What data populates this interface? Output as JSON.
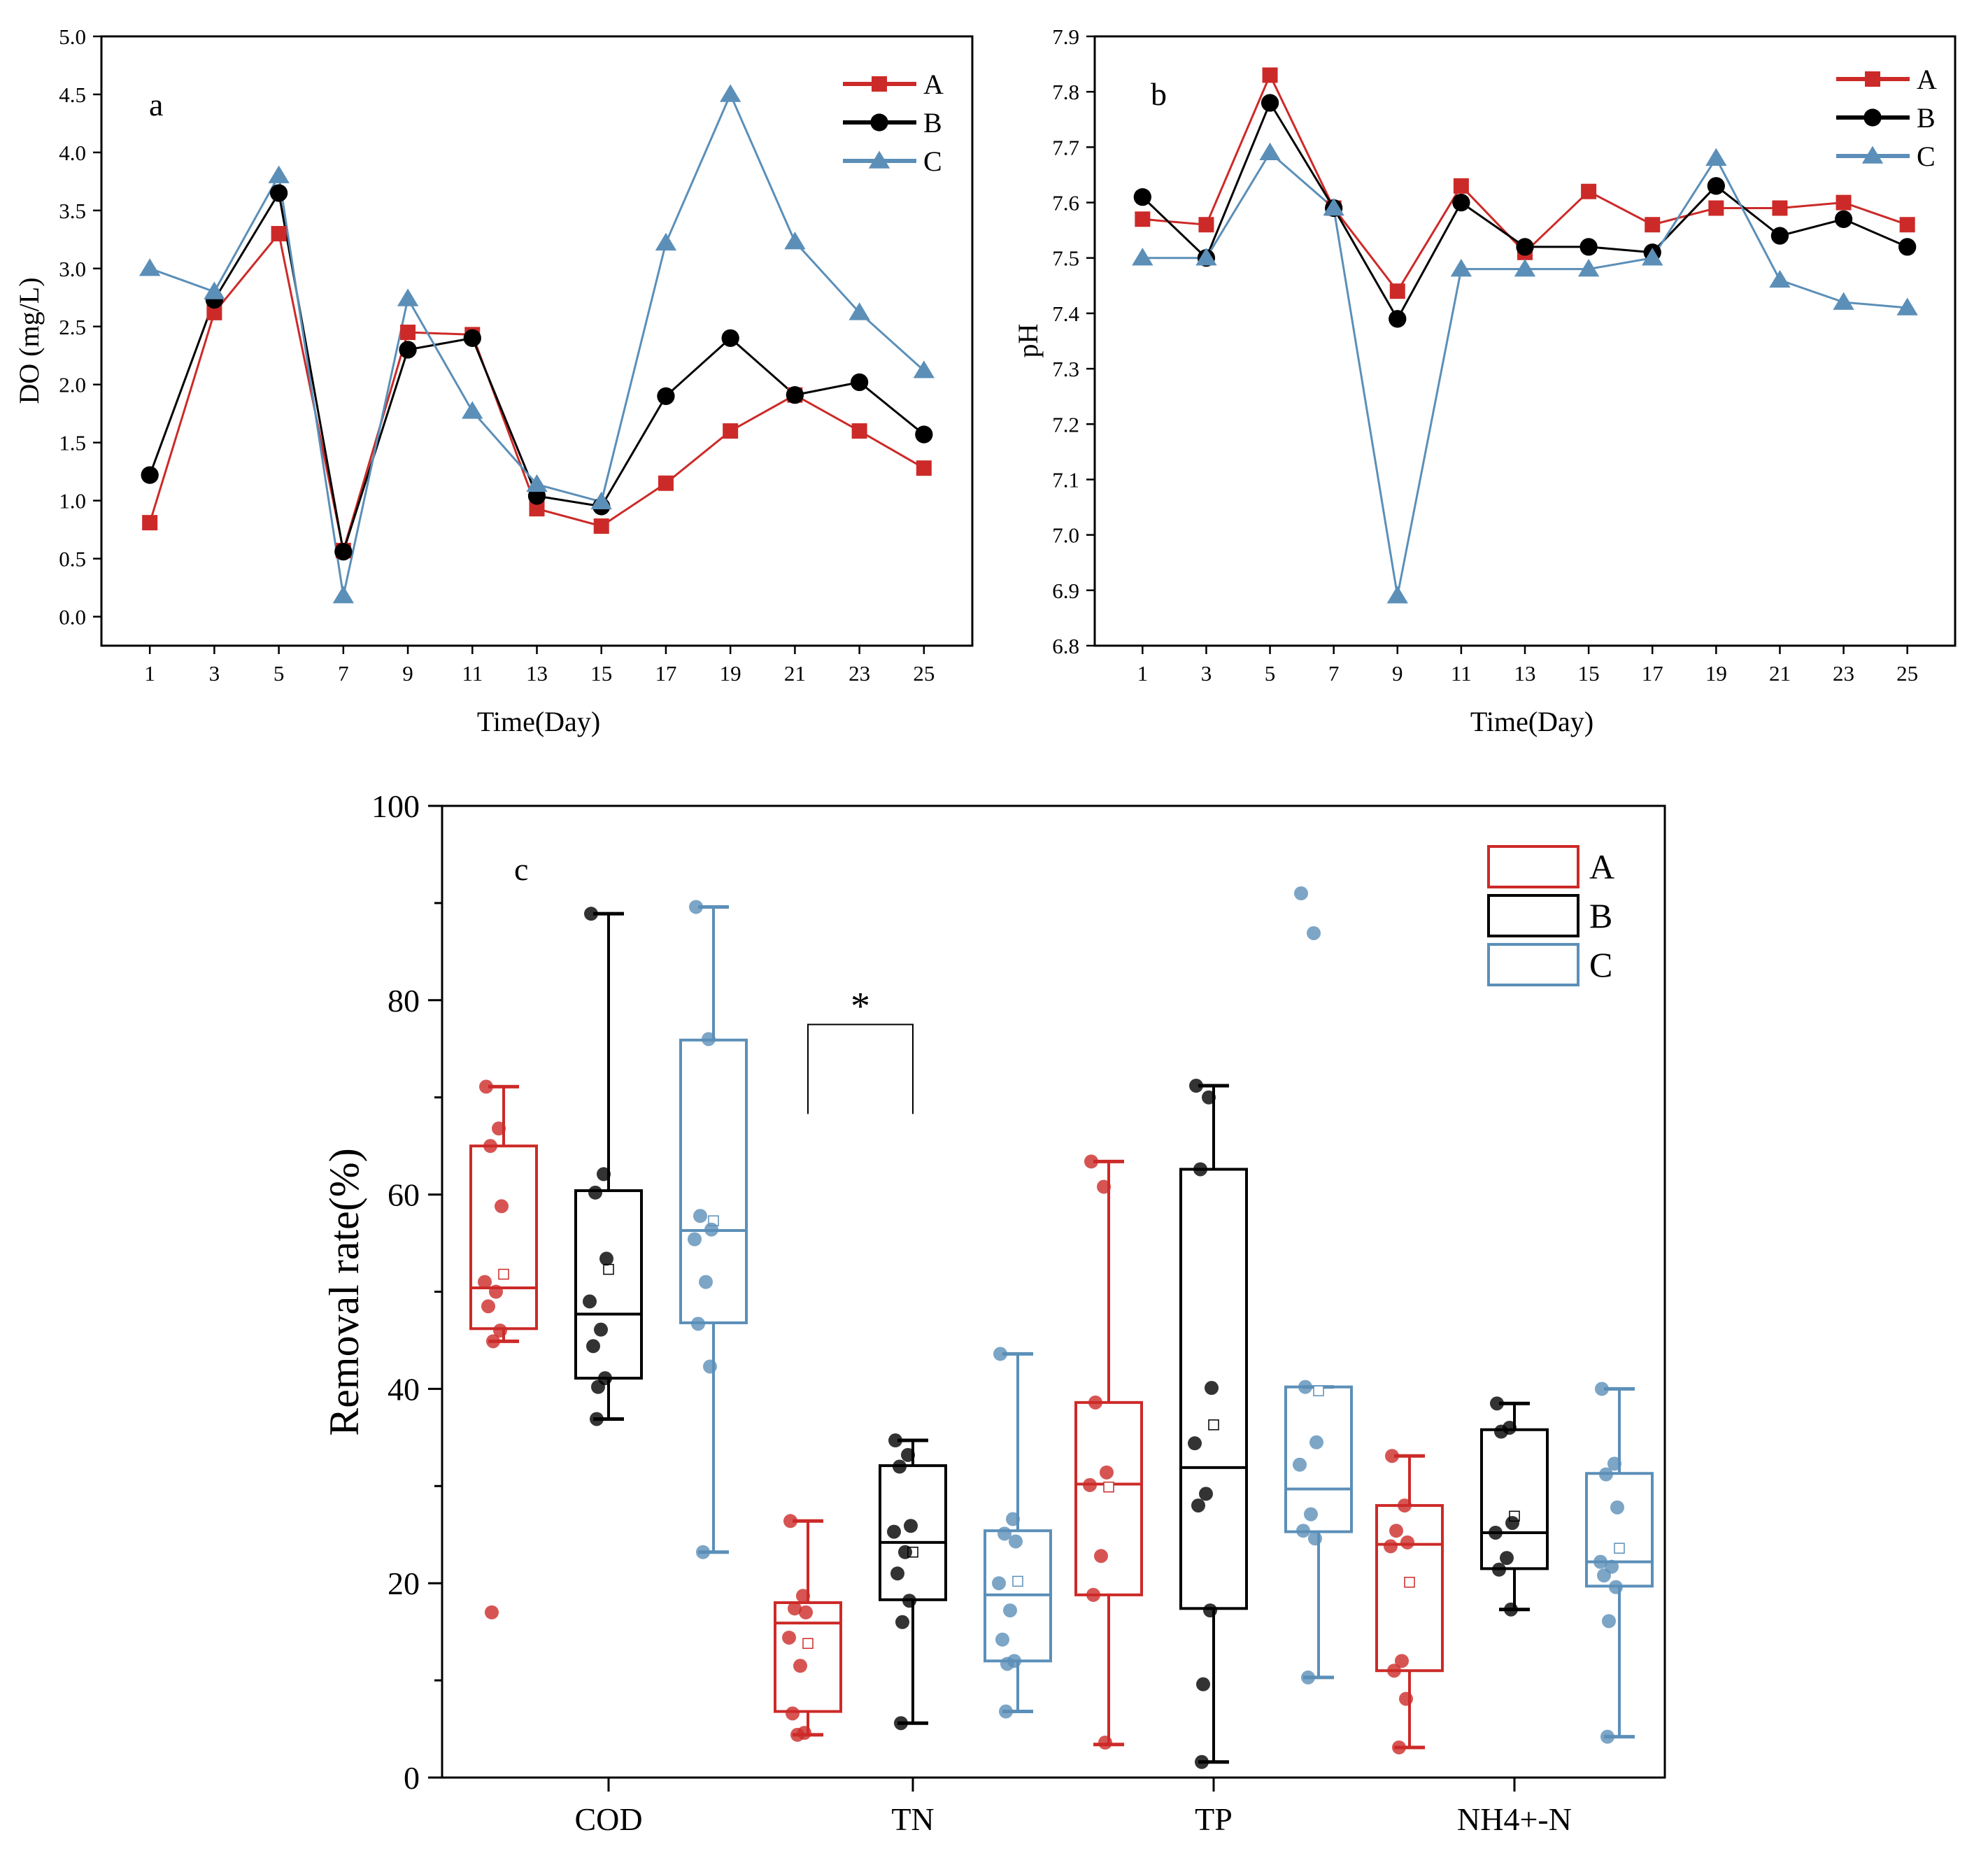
{
  "colors": {
    "A": "#cc2a28",
    "B": "#000000",
    "C": "#5b8fb8"
  },
  "chart_data": [
    {
      "type": "line",
      "panel_label": "a",
      "xlabel": "Time(Day)",
      "ylabel": "DO (mg/L)",
      "x": [
        1,
        3,
        5,
        7,
        9,
        11,
        13,
        15,
        17,
        19,
        21,
        23,
        25
      ],
      "xlim": [
        -0.5,
        26.5
      ],
      "ylim": [
        -0.25,
        5.0
      ],
      "yticks": [
        "0.0",
        "0.5",
        "1.0",
        "1.5",
        "2.0",
        "2.5",
        "3.0",
        "3.5",
        "4.0",
        "4.5",
        "5.0"
      ],
      "series": [
        {
          "name": "A",
          "marker": "square",
          "values": [
            0.81,
            2.62,
            3.3,
            0.57,
            2.45,
            2.43,
            0.93,
            0.78,
            1.15,
            1.6,
            1.91,
            1.6,
            1.28
          ]
        },
        {
          "name": "B",
          "marker": "circle",
          "values": [
            1.22,
            2.73,
            3.65,
            0.56,
            2.3,
            2.4,
            1.04,
            0.95,
            1.9,
            2.4,
            1.91,
            2.02,
            1.57
          ]
        },
        {
          "name": "C",
          "marker": "triangle",
          "values": [
            3.0,
            2.8,
            3.8,
            0.18,
            2.74,
            1.77,
            1.14,
            0.99,
            3.22,
            4.5,
            3.23,
            2.62,
            2.12
          ]
        }
      ]
    },
    {
      "type": "line",
      "panel_label": "b",
      "xlabel": "Time(Day)",
      "ylabel": "pH",
      "x": [
        1,
        3,
        5,
        7,
        9,
        11,
        13,
        15,
        17,
        19,
        21,
        23,
        25
      ],
      "xlim": [
        -0.5,
        26.5
      ],
      "ylim": [
        6.8,
        7.9
      ],
      "yticks": [
        "6.8",
        "6.9",
        "7.0",
        "7.1",
        "7.2",
        "7.3",
        "7.4",
        "7.5",
        "7.6",
        "7.7",
        "7.8",
        "7.9"
      ],
      "series": [
        {
          "name": "A",
          "marker": "square",
          "values": [
            7.57,
            7.56,
            7.83,
            7.59,
            7.44,
            7.63,
            7.51,
            7.62,
            7.56,
            7.59,
            7.59,
            7.6,
            7.56
          ]
        },
        {
          "name": "B",
          "marker": "circle",
          "values": [
            7.61,
            7.5,
            7.78,
            7.59,
            7.39,
            7.6,
            7.52,
            7.52,
            7.51,
            7.63,
            7.54,
            7.57,
            7.52
          ]
        },
        {
          "name": "C",
          "marker": "triangle",
          "values": [
            7.5,
            7.5,
            7.69,
            7.59,
            6.89,
            7.48,
            7.48,
            7.48,
            7.5,
            7.68,
            7.46,
            7.42,
            7.41
          ]
        }
      ]
    },
    {
      "type": "box",
      "panel_label": "c",
      "ylabel": "Removal  rate(%)",
      "ylim": [
        0,
        100
      ],
      "yticks": [
        "0",
        "20",
        "40",
        "60",
        "80",
        "100"
      ],
      "categories": [
        "COD",
        "TN",
        "TP",
        "NH4+-N"
      ],
      "significance": "*",
      "groups": [
        {
          "name": "A",
          "boxes": [
            {
              "q1": 46.2,
              "median": 50.4,
              "q3": 65.0,
              "whisker_low": 44.9,
              "whisker_high": 71.1,
              "mean": 51.8,
              "points": [
                71.1,
                66.8,
                65.0,
                58.8,
                51.0,
                50.0,
                48.5,
                46.0,
                44.9,
                17.0
              ]
            },
            {
              "q1": 6.8,
              "median": 15.9,
              "q3": 18.0,
              "whisker_low": 4.4,
              "whisker_high": 26.4,
              "mean": 13.8,
              "points": [
                26.4,
                18.7,
                17.4,
                17.0,
                14.4,
                11.5,
                6.6,
                4.6,
                4.4
              ]
            },
            {
              "q1": 18.8,
              "median": 30.2,
              "q3": 38.6,
              "whisker_low": 3.4,
              "whisker_high": 63.4,
              "mean": 29.9,
              "points": [
                63.4,
                60.8,
                38.6,
                31.4,
                30.1,
                22.8,
                18.8,
                3.6
              ]
            },
            {
              "q1": 11.0,
              "median": 24.0,
              "q3": 28.0,
              "whisker_low": 3.1,
              "whisker_high": 33.1,
              "mean": 20.1,
              "points": [
                33.1,
                28.0,
                25.4,
                24.2,
                23.8,
                12.0,
                11.0,
                8.1,
                3.1
              ]
            }
          ]
        },
        {
          "name": "B",
          "boxes": [
            {
              "q1": 41.1,
              "median": 47.7,
              "q3": 60.4,
              "whisker_low": 36.9,
              "whisker_high": 88.9,
              "mean": 52.3,
              "points": [
                88.9,
                62.1,
                60.2,
                53.4,
                49.0,
                46.1,
                44.4,
                41.1,
                40.2,
                36.9
              ]
            },
            {
              "q1": 18.3,
              "median": 24.2,
              "q3": 32.1,
              "whisker_low": 5.6,
              "whisker_high": 34.7,
              "mean": 23.2,
              "points": [
                34.7,
                33.2,
                32.0,
                25.9,
                25.3,
                23.2,
                21.0,
                18.2,
                16.0,
                5.6
              ]
            },
            {
              "q1": 17.4,
              "median": 31.9,
              "q3": 62.6,
              "whisker_low": 1.6,
              "whisker_high": 71.2,
              "mean": 36.3,
              "points": [
                71.2,
                70.0,
                62.6,
                40.1,
                34.4,
                29.2,
                28.0,
                17.2,
                9.6,
                1.6
              ]
            },
            {
              "q1": 21.5,
              "median": 25.2,
              "q3": 35.8,
              "whisker_low": 17.3,
              "whisker_high": 38.5,
              "mean": 26.9,
              "points": [
                38.5,
                36.0,
                35.6,
                26.2,
                25.2,
                22.6,
                21.4,
                17.3
              ]
            }
          ]
        },
        {
          "name": "C",
          "boxes": [
            {
              "q1": 46.8,
              "median": 56.3,
              "q3": 75.9,
              "whisker_low": 23.2,
              "whisker_high": 89.6,
              "mean": 57.3,
              "points": [
                89.6,
                76.0,
                57.8,
                56.4,
                55.4,
                51.0,
                46.7,
                42.3,
                23.2
              ]
            },
            {
              "q1": 12.0,
              "median": 18.8,
              "q3": 25.4,
              "whisker_low": 6.8,
              "whisker_high": 43.6,
              "mean": 20.2,
              "points": [
                43.6,
                26.6,
                25.1,
                24.3,
                20.0,
                17.2,
                14.2,
                12.0,
                11.7,
                6.8
              ]
            },
            {
              "q1": 25.3,
              "median": 29.7,
              "q3": 40.2,
              "whisker_low": 10.3,
              "whisker_high": 40.2,
              "mean": 39.8,
              "points": [
                91.0,
                86.9,
                40.2,
                34.5,
                32.2,
                27.1,
                25.4,
                24.6,
                10.3
              ]
            },
            {
              "q1": 19.7,
              "median": 22.2,
              "q3": 31.3,
              "whisker_low": 4.2,
              "whisker_high": 40.0,
              "mean": 23.6,
              "points": [
                40.0,
                32.3,
                31.2,
                27.8,
                22.2,
                21.7,
                20.8,
                19.6,
                16.1,
                4.2
              ]
            }
          ]
        }
      ]
    }
  ]
}
